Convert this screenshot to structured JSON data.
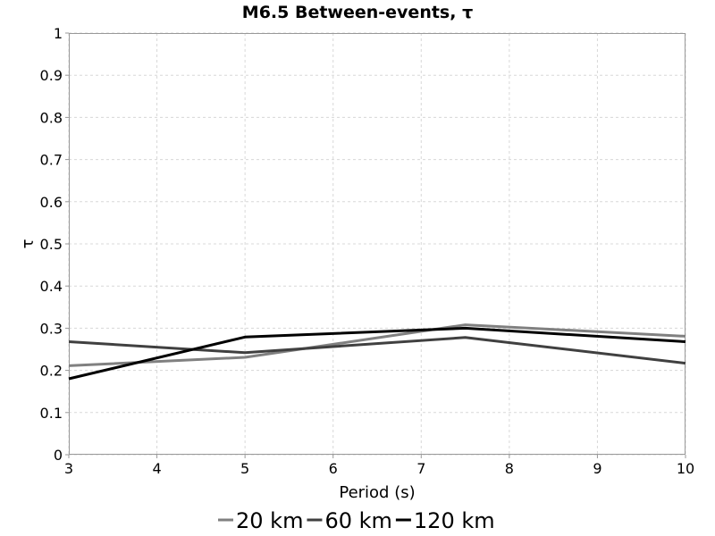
{
  "chart_data": {
    "type": "line",
    "title": "M6.5 Between-events, τ",
    "xlabel": "Period (s)",
    "ylabel": "τ",
    "xlim": [
      3,
      10
    ],
    "ylim": [
      0,
      1
    ],
    "x_ticks": [
      "3",
      "4",
      "5",
      "6",
      "7",
      "8",
      "9",
      "10"
    ],
    "y_ticks": [
      "0",
      "0.1",
      "0.2",
      "0.3",
      "0.4",
      "0.5",
      "0.6",
      "0.7",
      "0.8",
      "0.9",
      "1"
    ],
    "grid": true,
    "legend_position": "bottom",
    "series": [
      {
        "name": "20 km",
        "color": "#808080",
        "points": [
          [
            3,
            0.211
          ],
          [
            5,
            0.231
          ],
          [
            7.5,
            0.308
          ],
          [
            10,
            0.281
          ]
        ]
      },
      {
        "name": "60 km",
        "color": "#404040",
        "points": [
          [
            3,
            0.268
          ],
          [
            5,
            0.242
          ],
          [
            7.5,
            0.278
          ],
          [
            10,
            0.217
          ]
        ]
      },
      {
        "name": "120 km",
        "color": "#000000",
        "points": [
          [
            3,
            0.18
          ],
          [
            5,
            0.279
          ],
          [
            7.5,
            0.3
          ],
          [
            10,
            0.268
          ]
        ]
      }
    ]
  }
}
